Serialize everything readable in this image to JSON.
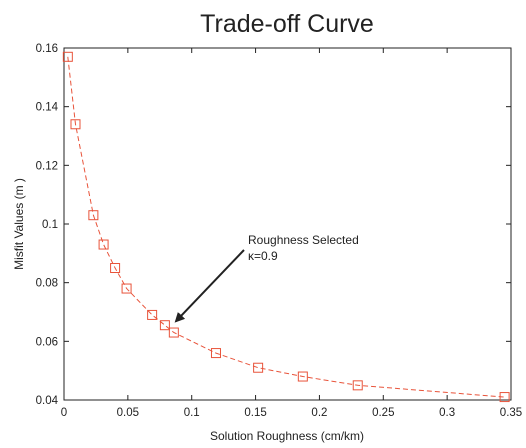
{
  "chart_data": {
    "type": "line",
    "title": "Trade-off Curve",
    "xlabel": "Solution Roughness (cm/km)",
    "ylabel": "Misfit Values (m )",
    "xlim": [
      0,
      0.35
    ],
    "ylim": [
      0.04,
      0.16
    ],
    "x_ticks": [
      "0",
      "0.05",
      "0.1",
      "0.15",
      "0.2",
      "0.25",
      "0.3",
      "0.35"
    ],
    "y_ticks": [
      "0.04",
      "0.06",
      "0.08",
      "0.1",
      "0.12",
      "0.14",
      "0.16"
    ],
    "grid": false,
    "series": [
      {
        "color": "#e8533a",
        "line_style": "dashed",
        "marker": "square",
        "x": [
          0.003,
          0.009,
          0.023,
          0.031,
          0.04,
          0.049,
          0.069,
          0.079,
          0.086,
          0.119,
          0.152,
          0.187,
          0.23,
          0.345
        ],
        "y": [
          0.157,
          0.134,
          0.103,
          0.093,
          0.085,
          0.078,
          0.069,
          0.0655,
          0.063,
          0.056,
          0.051,
          0.048,
          0.045,
          0.041
        ]
      }
    ],
    "annotation": {
      "line1": "Roughness Selected",
      "line2": "κ=0.9",
      "target_x": 0.083,
      "target_y": 0.0655
    }
  }
}
